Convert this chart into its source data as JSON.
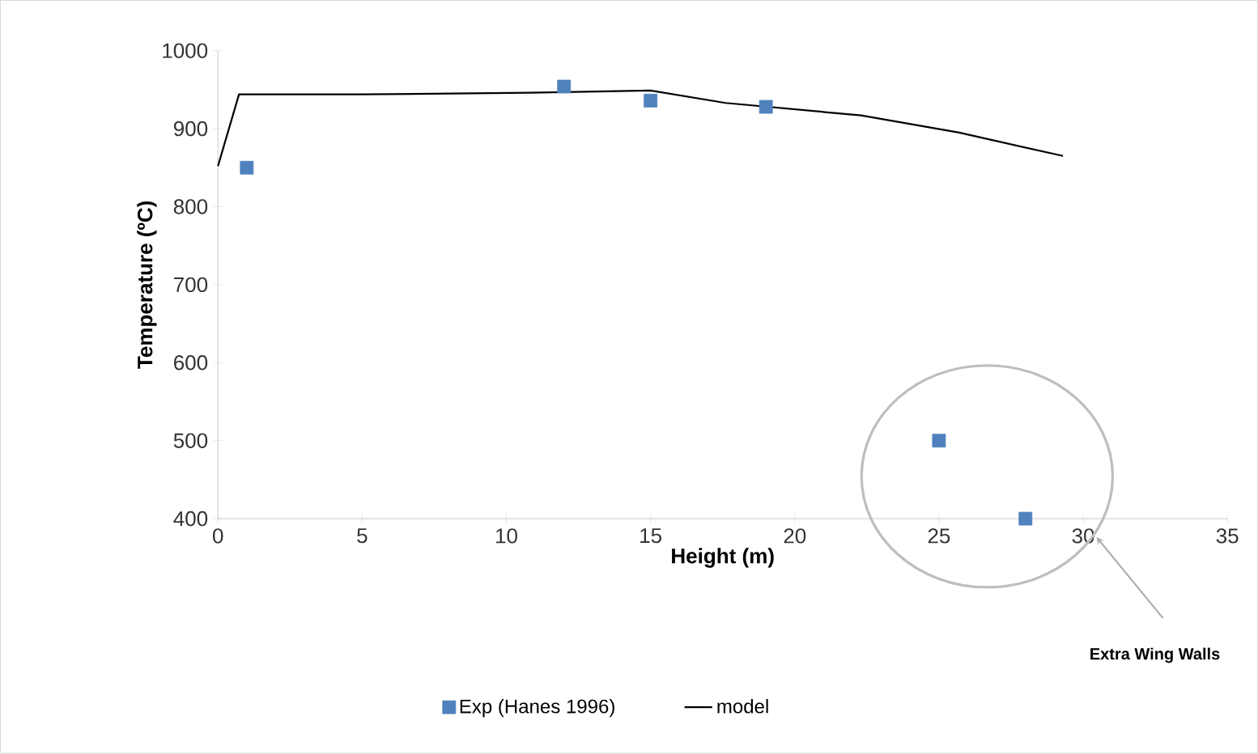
{
  "chart_data": {
    "type": "scatter",
    "xlabel": "Height (m)",
    "ylabel": "Temperature (ºC)",
    "xlim": [
      0,
      35
    ],
    "ylim": [
      400,
      1000
    ],
    "xticks": [
      0,
      5,
      10,
      15,
      20,
      25,
      30,
      35
    ],
    "yticks": [
      400,
      500,
      600,
      700,
      800,
      900,
      1000
    ],
    "legend": "bottom",
    "annotations": [
      "Extra Wing Walls"
    ],
    "series": [
      {
        "name": "Exp (Hanes 1996)",
        "color": "#4f81bd",
        "marker": "square",
        "x": [
          1,
          12,
          15,
          19,
          25,
          28
        ],
        "values": [
          850,
          954,
          936,
          928,
          500,
          400
        ]
      },
      {
        "name": "model",
        "type": "line",
        "color": "#000000",
        "marker": "none",
        "line_style": "solid",
        "x": [
          0,
          0.73,
          5,
          10.8,
          15,
          17.6,
          22.3,
          25.7,
          29.3
        ],
        "values": [
          852,
          944,
          944,
          946,
          949,
          933,
          917,
          895,
          865
        ]
      }
    ]
  }
}
